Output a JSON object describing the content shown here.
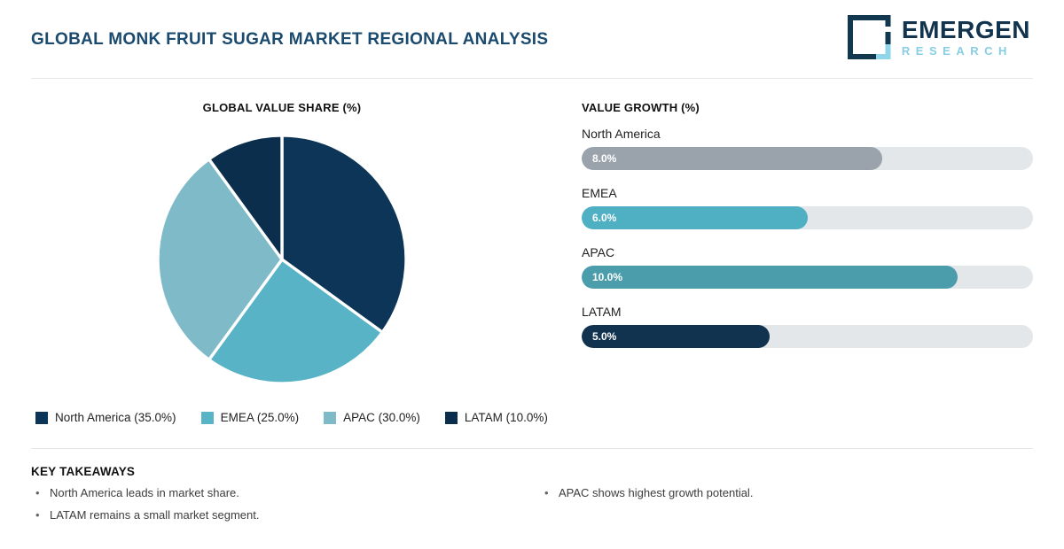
{
  "header": {
    "title": "GLOBAL MONK FRUIT SUGAR MARKET REGIONAL ANALYSIS",
    "logo_primary": "EMERGEN",
    "logo_secondary": "RESEARCH"
  },
  "pie_section": {
    "title": "GLOBAL VALUE SHARE (%)",
    "legend": [
      {
        "label": "North America (35.0%)",
        "color": "#0d3557"
      },
      {
        "label": "EMEA (25.0%)",
        "color": "#57b3c5"
      },
      {
        "label": "APAC (30.0%)",
        "color": "#7fbac9"
      },
      {
        "label": "LATAM (10.0%)",
        "color": "#0b2e4c"
      }
    ]
  },
  "bars_section": {
    "title": "VALUE GROWTH (%)",
    "scale_max": 12,
    "track_color": "#e3e7ea",
    "items": [
      {
        "label": "North America",
        "value": 8.0,
        "value_label": "8.0%",
        "color": "#9aa3ac"
      },
      {
        "label": "EMEA",
        "value": 6.0,
        "value_label": "6.0%",
        "color": "#4fafc3"
      },
      {
        "label": "APAC",
        "value": 10.0,
        "value_label": "10.0%",
        "color": "#4b9dab"
      },
      {
        "label": "LATAM",
        "value": 5.0,
        "value_label": "5.0%",
        "color": "#11334f"
      }
    ]
  },
  "takeaways": {
    "title": "KEY TAKEAWAYS",
    "left": [
      "North America leads in market share.",
      "LATAM remains a small market segment."
    ],
    "right": [
      "APAC shows highest growth potential."
    ]
  },
  "colors": {
    "title_navy": "#1b4a6f",
    "logo_navy": "#12344e",
    "logo_cyan": "#87cee5",
    "divider": "#e7e7e7"
  },
  "chart_data": [
    {
      "type": "pie",
      "title": "GLOBAL VALUE SHARE (%)",
      "labels": [
        "North America",
        "EMEA",
        "APAC",
        "LATAM"
      ],
      "values": [
        35.0,
        25.0,
        30.0,
        10.0
      ],
      "unit": "%",
      "colors": [
        "#0d3557",
        "#57b3c5",
        "#7fbac9",
        "#0b2e4c"
      ],
      "start_angle": "top",
      "direction": "clockwise",
      "slice_stroke": "#ffffff",
      "legend_position": "bottom"
    },
    {
      "type": "bar",
      "title": "VALUE GROWTH (%)",
      "orientation": "horizontal",
      "categories": [
        "North America",
        "EMEA",
        "APAC",
        "LATAM"
      ],
      "values": [
        8.0,
        6.0,
        10.0,
        5.0
      ],
      "value_labels": [
        "8.0%",
        "6.0%",
        "10.0%",
        "5.0%"
      ],
      "colors": [
        "#9aa3ac",
        "#4fafc3",
        "#4b9dab",
        "#11334f"
      ],
      "xlim": [
        0,
        12
      ],
      "grid": false,
      "track_color": "#e3e7ea"
    }
  ]
}
